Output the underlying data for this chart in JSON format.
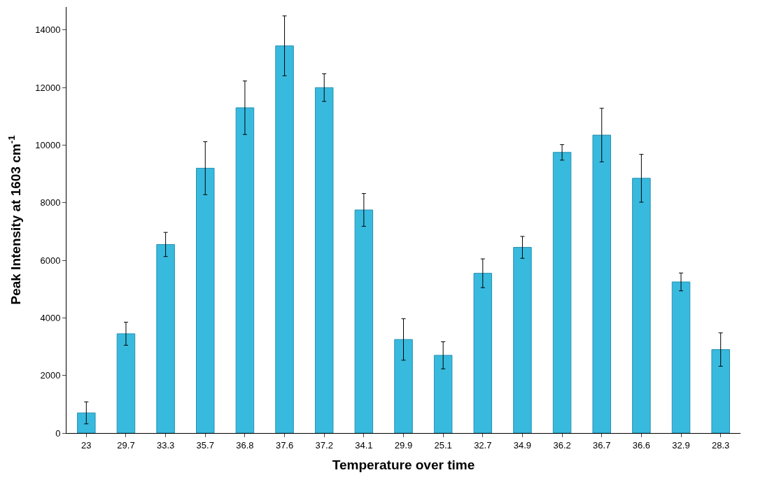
{
  "chart_data": {
    "type": "bar",
    "xlabel": "Temperature over time",
    "ylabel": "Peak Intensity at 1603 cm$^{-1}$",
    "categories": [
      "23",
      "29.7",
      "33.3",
      "35.7",
      "36.8",
      "37.6",
      "37.2",
      "34.1",
      "29.9",
      "25.1",
      "32.7",
      "34.9",
      "36.2",
      "36.7",
      "36.6",
      "32.9",
      "28.3"
    ],
    "values": [
      700,
      3450,
      6550,
      9200,
      11300,
      13450,
      12000,
      7750,
      3250,
      2700,
      5550,
      6450,
      9750,
      10350,
      8850,
      5250,
      2900
    ],
    "errors": [
      380,
      400,
      420,
      920,
      930,
      1040,
      480,
      570,
      720,
      470,
      500,
      380,
      270,
      930,
      830,
      310,
      580
    ],
    "color": "#38badf",
    "ylim": [
      0,
      14800
    ],
    "yticks": [
      0,
      2000,
      4000,
      6000,
      8000,
      10000,
      12000,
      14000
    ],
    "legend": false
  }
}
